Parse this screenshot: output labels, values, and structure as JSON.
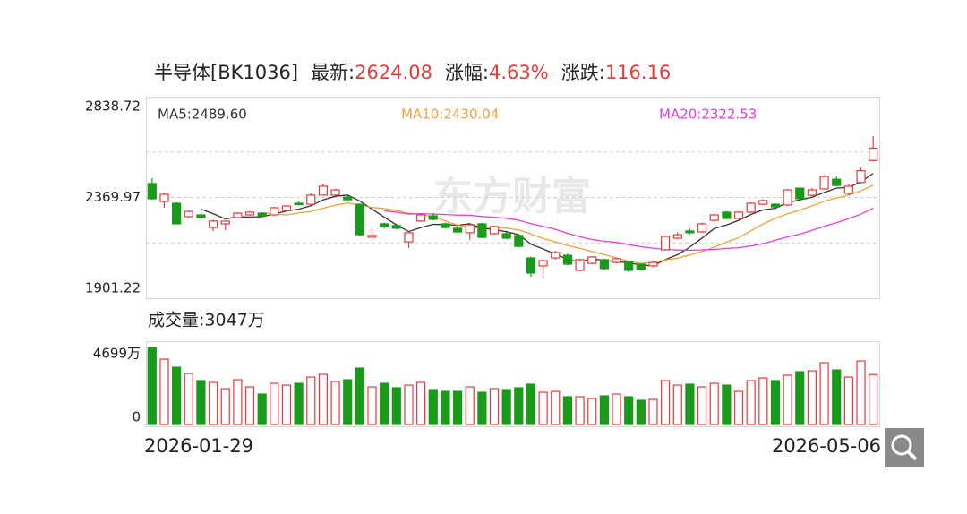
{
  "chart_data": {
    "type": "candlestick",
    "title": "半导体[BK1036]",
    "stats": [
      {
        "label": "最新:",
        "value": "2624.08"
      },
      {
        "label": "涨幅:",
        "value": "4.63%"
      },
      {
        "label": "涨跌:",
        "value": "116.16"
      }
    ],
    "ma_labels": [
      {
        "text": "MA5:2489.60",
        "window": 5,
        "color": "#333333"
      },
      {
        "text": "MA10:2430.04",
        "window": 10,
        "color": "#f0a23a"
      },
      {
        "text": "MA20:2322.53",
        "window": 20,
        "color": "#e23ee2"
      }
    ],
    "watermark": "东方财富",
    "volume_title": "成交量:3047万",
    "up_color": "#e83a3a",
    "down_color": "#1a9a1a",
    "categories": [
      "2026-01-29",
      null,
      null,
      null,
      null,
      null,
      null,
      null,
      null,
      null,
      null,
      null,
      null,
      null,
      null,
      null,
      null,
      null,
      null,
      null,
      null,
      null,
      null,
      null,
      null,
      null,
      null,
      null,
      null,
      null,
      null,
      null,
      null,
      null,
      null,
      null,
      null,
      null,
      null,
      null,
      null,
      null,
      null,
      null,
      null,
      null,
      null,
      null,
      null,
      null,
      null,
      null,
      null,
      null,
      null,
      null,
      null,
      null,
      null,
      "2026-05-06"
    ],
    "open": [
      2442,
      2349,
      2340,
      2271,
      2280,
      2215,
      2234,
      2266,
      2280,
      2289,
      2280,
      2303,
      2340,
      2335,
      2382,
      2382,
      2372,
      2335,
      2165,
      2234,
      2225,
      2141,
      2248,
      2275,
      2234,
      2211,
      2188,
      2234,
      2183,
      2183,
      2174,
      2058,
      2017,
      2058,
      2072,
      1994,
      2030,
      2049,
      2035,
      2040,
      2026,
      2017,
      2100,
      2160,
      2197,
      2192,
      2252,
      2294,
      2262,
      2294,
      2335,
      2335,
      2331,
      2418,
      2381,
      2414,
      2464,
      2391,
      2447,
      2560
    ],
    "close": [
      2363,
      2386,
      2234,
      2298,
      2266,
      2248,
      2248,
      2289,
      2294,
      2275,
      2317,
      2326,
      2335,
      2382,
      2428,
      2409,
      2358,
      2178,
      2174,
      2220,
      2211,
      2188,
      2280,
      2257,
      2215,
      2192,
      2229,
      2164,
      2220,
      2160,
      2118,
      1980,
      2044,
      2086,
      2026,
      2049,
      2063,
      2003,
      2054,
      1994,
      1998,
      2035,
      2169,
      2178,
      2188,
      2234,
      2280,
      2262,
      2294,
      2340,
      2354,
      2321,
      2409,
      2363,
      2409,
      2478,
      2432,
      2428,
      2507.92,
      2624.08
    ],
    "high": [
      2469,
      2392,
      2345,
      2303,
      2290,
      2255,
      2252,
      2294,
      2300,
      2294,
      2322,
      2331,
      2350,
      2390,
      2442,
      2415,
      2380,
      2340,
      2210,
      2240,
      2235,
      2195,
      2285,
      2290,
      2240,
      2225,
      2235,
      2240,
      2225,
      2190,
      2180,
      2065,
      2050,
      2095,
      2080,
      2055,
      2068,
      2055,
      2060,
      2045,
      2030,
      2040,
      2175,
      2190,
      2210,
      2240,
      2285,
      2300,
      2298,
      2345,
      2360,
      2340,
      2412,
      2422,
      2418,
      2484,
      2478,
      2440,
      2525,
      2686
    ],
    "low": [
      2358,
      2317,
      2230,
      2262,
      2260,
      2197,
      2201,
      2262,
      2275,
      2270,
      2275,
      2298,
      2330,
      2330,
      2378,
      2378,
      2350,
      2170,
      2160,
      2210,
      2205,
      2109,
      2244,
      2252,
      2210,
      2185,
      2151,
      2160,
      2178,
      2155,
      2112,
      1961,
      1952,
      2050,
      2020,
      1990,
      2025,
      1998,
      2030,
      1985,
      1994,
      2010,
      2095,
      2155,
      2180,
      2188,
      2248,
      2257,
      2257,
      2290,
      2330,
      2315,
      2326,
      2358,
      2377,
      2410,
      2428,
      2380,
      2440,
      2555
    ],
    "volume": [
      4699,
      3986,
      3494,
      3112,
      2675,
      2566,
      2184,
      2730,
      2293,
      1856,
      2512,
      2402,
      2512,
      2894,
      3058,
      2621,
      2730,
      3440,
      2293,
      2512,
      2239,
      2402,
      2566,
      2129,
      2020,
      2020,
      2293,
      1966,
      2184,
      2129,
      2239,
      2457,
      1966,
      2020,
      1693,
      1693,
      1583,
      1747,
      1856,
      1693,
      1474,
      1529,
      2675,
      2402,
      2457,
      2293,
      2512,
      2402,
      2020,
      2675,
      2839,
      2675,
      3003,
      3221,
      3276,
      3767,
      3330,
      2894,
      3876,
      3047
    ],
    "ylim": [
      1901.22,
      2838.72
    ],
    "yticks": [
      1901.22,
      2369.97,
      2838.72
    ],
    "vol_ylim": [
      0,
      4699
    ],
    "vol_yticks": [
      0,
      {
        "value": 4699,
        "label": "4699万"
      }
    ]
  }
}
